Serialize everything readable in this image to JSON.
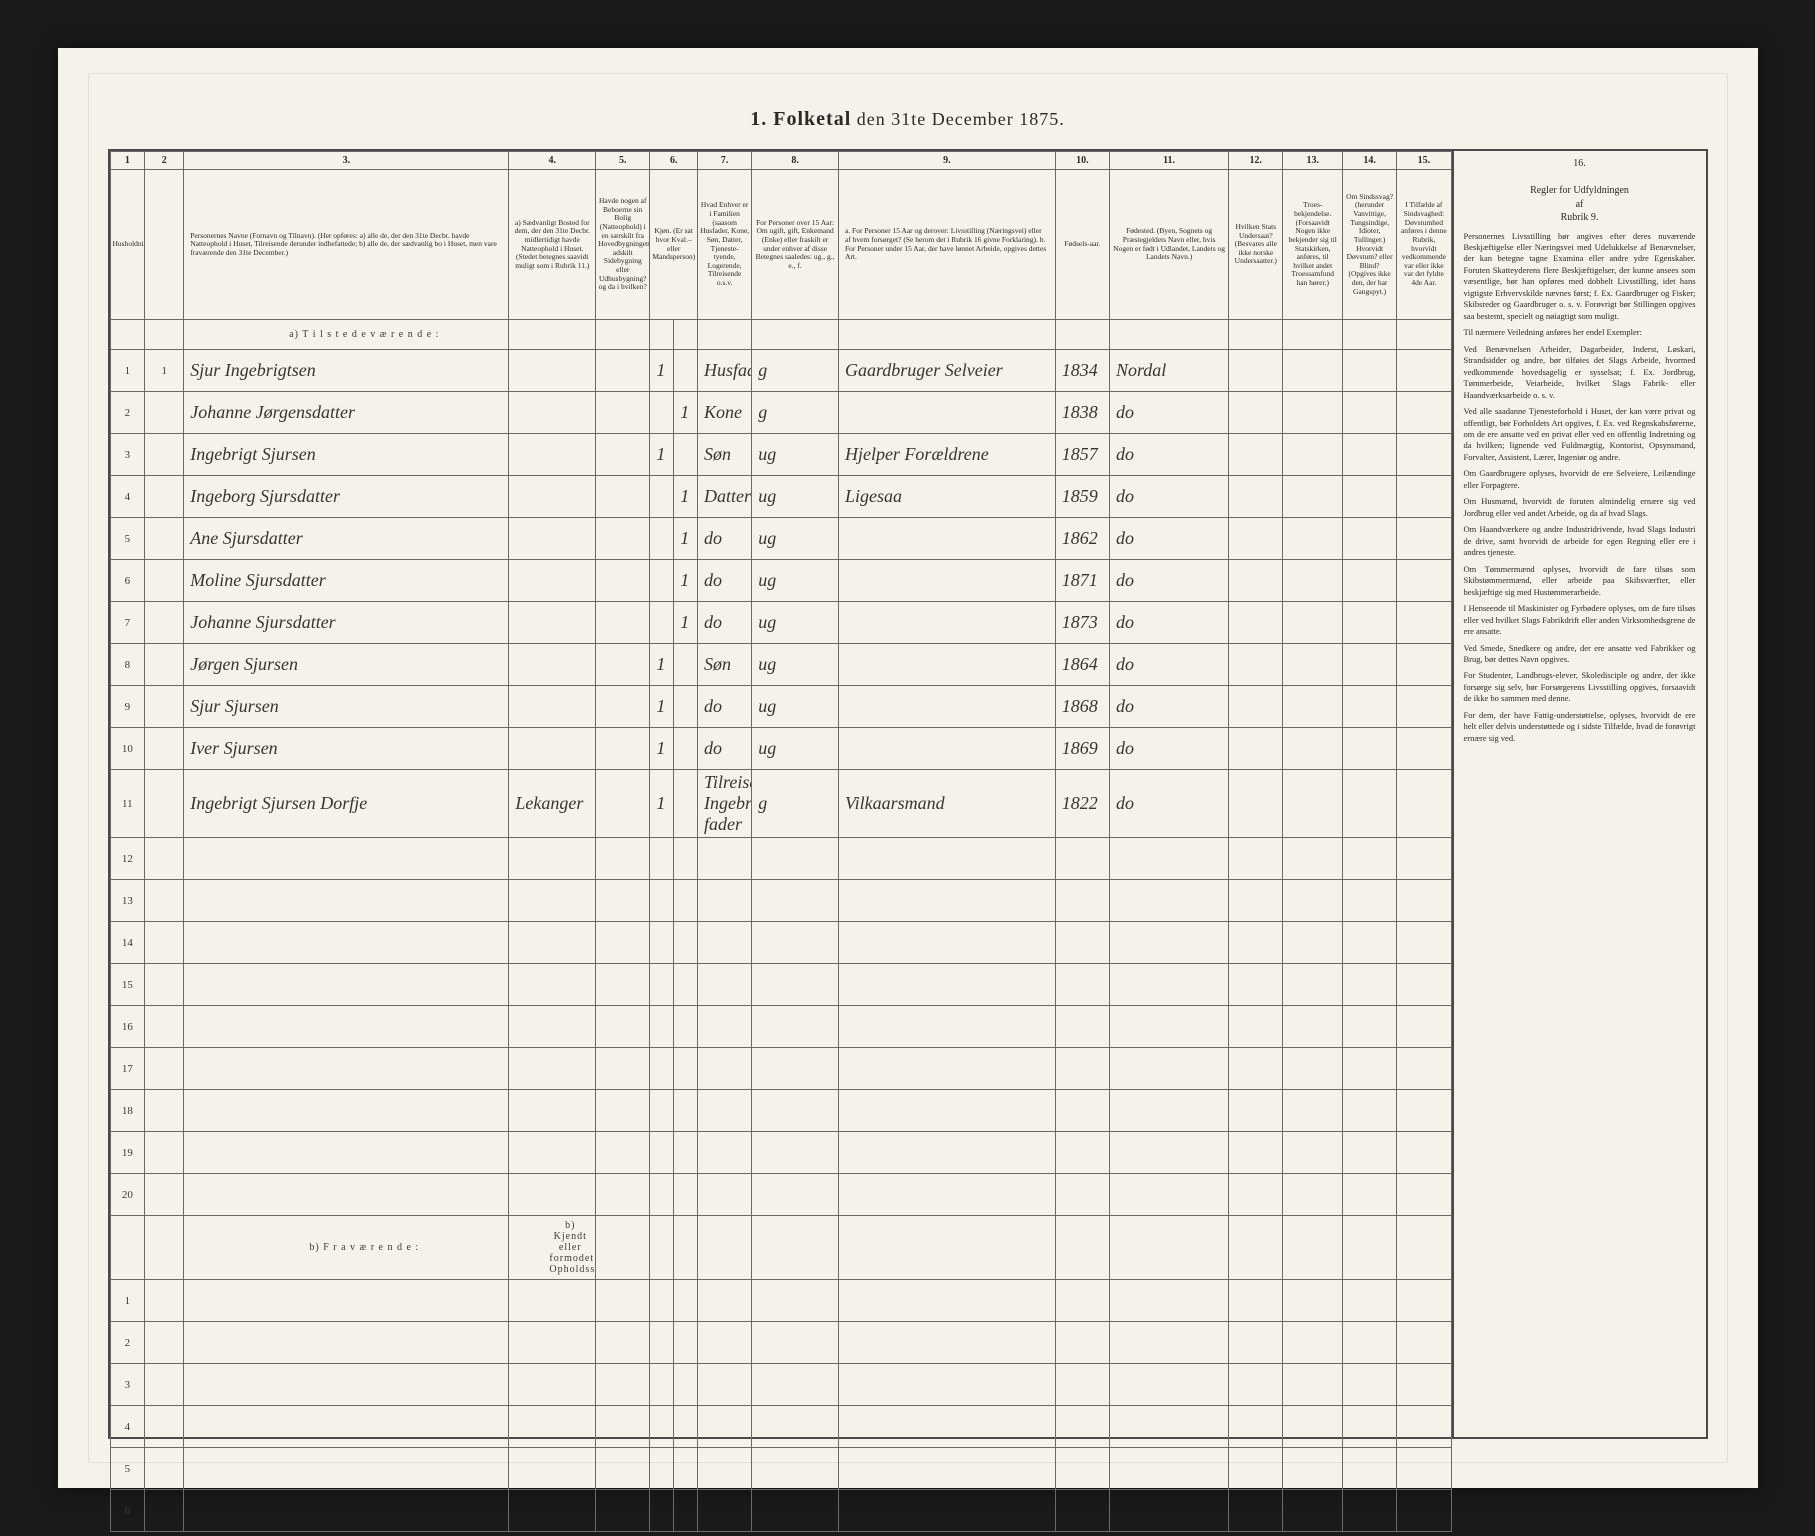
{
  "title_prefix": "1. Folketal",
  "title_suffix": "den 31te December 1875.",
  "colnums": [
    "1",
    "2",
    "3.",
    "4.",
    "5.",
    "6.",
    "7.",
    "8.",
    "9.",
    "10.",
    "11.",
    "12.",
    "13.",
    "14.",
    "15.",
    "16."
  ],
  "headers": {
    "c1": "Husholdninger.",
    "c2": "",
    "c3": "Personernes Navne (Fornavn og Tilnavn).\n(Her opføres:\na) alle de, der den 31te Decbr. havde Natteophold i Huset, Tilreisende derunder indbefattede;\nb) alle de, der sædvanlig bo i Huset, men vare fraværende den 31te December.)",
    "c4": "a) Sædvanligt Bosted for dem, der den 31te Decbr. midlertidigt havde Natteophold i Huset. (Stedet betegnes saavidt muligt som i Rubrik 11.)",
    "c5": "Havde nogen af Beboerne sin Bolig (Natteophold) i en særskilt fra Hovedbygningen adskilt Sidebygning eller Udhusbygning? og da i hvilken?",
    "c6": "Kjøn. (Er sat hvor Kval.– eller Mandsperson)",
    "c7": "Hvad Enhver er i Familien (saasom Husfader, Kone, Søn, Datter, Tjeneste-tyende, Logerende, Tilreisende o.s.v.",
    "c8": "For Personer over 15 Aar: Om ugift, gift, Enkemand (Enke) eller fraskilt er under enhver af disse Betegnes saaledes: ug., g., e., f.",
    "c9": "a. For Personer 15 Aar og derover: Livsstilling (Næringsvei) eller af hvem forsørget? (Se herom det i Rubrik 16 givne Forklaring).\nb. For Personer under 15 Aar, der have lønnet Arbeide, opgives dettes Art.",
    "c10": "Fødsels-aar.",
    "c11": "Fødested.\n(Byen, Sognets og Præstegjeldets Navn eller, hvis Nogen er født i Udlandet, Landets og Landets Navn.)",
    "c12": "Hvilken Stats Undersaat? (Besvares alle ikke norske Undersaatter.)",
    "c13": "Troes-bekjendelse. (Forsaavidt Nogen ikke bekjender sig til Statskirken, anføres, til hvilket andet Troessamfund han hører.)",
    "c14": "Om Sindssvag? (herunder Vanvittige, Tungsindige, Idioter, Tullinger.) Hvorvidt Døvstum? eller Blind? (Opgives ikke den, der har Gangspyt.)",
    "c15": "I Tilfælde af Sindsvaghed: Døvstumhed anføres i denne Rubrik, hvorvidt vedkommende var eller ikke var det fyldte 4de Aar."
  },
  "section_a": "a) T i l s t e d e v æ r e n d e :",
  "section_b": "b) F r a v æ r e n d e :",
  "section_b_note": "b) Kjendt eller formodet Opholdssted.",
  "rows": [
    {
      "n": "1",
      "hh": "1",
      "name": "Sjur Ingebrigtsen",
      "c4": "",
      "c5": "",
      "c6": "1",
      "c6b": "",
      "c7": "Husfader",
      "c8": "g",
      "c9": "Gaardbruger Selveier",
      "c10": "1834",
      "c11": "Nordal"
    },
    {
      "n": "2",
      "hh": "",
      "name": "Johanne Jørgensdatter",
      "c4": "",
      "c5": "",
      "c6": "",
      "c6b": "1",
      "c7": "Kone",
      "c8": "g",
      "c9": "",
      "c10": "1838",
      "c11": "do"
    },
    {
      "n": "3",
      "hh": "",
      "name": "Ingebrigt Sjursen",
      "c4": "",
      "c5": "",
      "c6": "1",
      "c6b": "",
      "c7": "Søn",
      "c8": "ug",
      "c9": "Hjelper Forældrene",
      "c10": "1857",
      "c11": "do"
    },
    {
      "n": "4",
      "hh": "",
      "name": "Ingeborg Sjursdatter",
      "c4": "",
      "c5": "",
      "c6": "",
      "c6b": "1",
      "c7": "Datter",
      "c8": "ug",
      "c9": "Ligesaa",
      "c10": "1859",
      "c11": "do"
    },
    {
      "n": "5",
      "hh": "",
      "name": "Ane Sjursdatter",
      "c4": "",
      "c5": "",
      "c6": "",
      "c6b": "1",
      "c7": "do",
      "c8": "ug",
      "c9": "",
      "c10": "1862",
      "c11": "do"
    },
    {
      "n": "6",
      "hh": "",
      "name": "Moline Sjursdatter",
      "c4": "",
      "c5": "",
      "c6": "",
      "c6b": "1",
      "c7": "do",
      "c8": "ug",
      "c9": "",
      "c10": "1871",
      "c11": "do"
    },
    {
      "n": "7",
      "hh": "",
      "name": "Johanne Sjursdatter",
      "c4": "",
      "c5": "",
      "c6": "",
      "c6b": "1",
      "c7": "do",
      "c8": "ug",
      "c9": "",
      "c10": "1873",
      "c11": "do"
    },
    {
      "n": "8",
      "hh": "",
      "name": "Jørgen Sjursen",
      "c4": "",
      "c5": "",
      "c6": "1",
      "c6b": "",
      "c7": "Søn",
      "c8": "ug",
      "c9": "",
      "c10": "1864",
      "c11": "do"
    },
    {
      "n": "9",
      "hh": "",
      "name": "Sjur Sjursen",
      "c4": "",
      "c5": "",
      "c6": "1",
      "c6b": "",
      "c7": "do",
      "c8": "ug",
      "c9": "",
      "c10": "1868",
      "c11": "do"
    },
    {
      "n": "10",
      "hh": "",
      "name": "Iver Sjursen",
      "c4": "",
      "c5": "",
      "c6": "1",
      "c6b": "",
      "c7": "do",
      "c8": "ug",
      "c9": "",
      "c10": "1869",
      "c11": "do"
    },
    {
      "n": "11",
      "hh": "",
      "name": "Ingebrigt Sjursen Dorfje",
      "c4": "Lekanger",
      "c5": "",
      "c6": "1",
      "c6b": "",
      "c7": "Tilreisende Ingebrigts fader",
      "c8": "g",
      "c9": "Vilkaarsmand",
      "c10": "1822",
      "c11": "do"
    }
  ],
  "empty_rows_a": [
    "12",
    "13",
    "14",
    "15",
    "16",
    "17",
    "18",
    "19",
    "20"
  ],
  "empty_rows_b": [
    "1",
    "2",
    "3",
    "4",
    "5",
    "6"
  ],
  "sidebar": {
    "head": "Regler for Udfyldningen\naf\nRubrik 9.",
    "paras": [
      "Personernes Livsstilling bør angives efter deres nuværende Beskjæftigelse eller Næringsvei med Udelukkelse af Benævnelser, der kan betegne tagne Examina eller andre ydre Egenskaber. Foruten Skatteyderens flere Beskjæftigelser, der kunne ansees som væsentlige, bør han opføres med dobbelt Livsstilling, idet hans vigtigste Erhvervskilde nævnes først; f. Ex. Gaardbruger og Fisker; Skibsreder og Gaardbruger o. s. v. Forøvrigt bør Stillingen opgives saa bestemt, specielt og nøiagtigt som muligt.",
      "Til nærmere Veiledning anføres her endel Exempler:",
      "Ved Benævnelsen Arbeider, Dagarbeider, Inderst, Løskari, Strandsidder og andre, bør tilføies det Slags Arbeide, hvormed vedkommende hovedsagelig er sysselsat; f. Ex. Jordbrug, Tømmerbeide, Veiarbeide, hvilket Slags Fabrik- eller Haandværksarbeide o. s. v.",
      "Ved alle saadanne Tjenesteforhold i Huset, der kan være privat og offentligt, bør Forholdets Art opgives, f. Ex. ved Regnskabsførerne, om de ere ansatte ved en privat eller ved en offentlig Indretning og da hvilken; lignende ved Fuldmægtig, Kontorist, Opsynsmand, Forvalter, Assistent, Lærer, Ingeniør og andre.",
      "Om Gaardbrugere oplyses, hvorvidt de ere Selveiere, Leilændinge eller Forpagtere.",
      "Om Husmænd, hvorvidt de foruten almindelig ernære sig ved Jordbrug eller ved andet Arbeide, og da af hvad Slags.",
      "Om Haandværkere og andre Industridrivende, hvad Slags Industri de drive, samt hvorvidt de arbeide for egen Regning eller ere i andres tjeneste.",
      "Om Tømmermænd oplyses, hvorvidt de fare tilsøs som Skibstømmermænd, eller arbeide paa Skibsværfter, eller beskjæftige sig med Hustømmerarbeide.",
      "I Henseende til Maskinister og Fyrbødere oplyses, om de fare tilsøs eller ved hvilket Slags Fabrikdrift eller anden Virksomhedsgrene de ere ansatte.",
      "Ved Smede, Snedkere og andre, der ere ansatte ved Fabrikker og Brug, bør dettes Navn opgives.",
      "For Studenter, Landbrugs-elever, Skoledisciple og andre, der ikke forsørge sig selv, bør Forsørgerens Livsstilling opgives, forsaavidt de ikke bo sammen med denne.",
      "For dem, der have Fattig-understøttelse, oplyses, hvorvidt de ere helt eller delvis understøttede og i sidste Tilfælde, hvad de forøvrigt ernære sig ved."
    ]
  }
}
